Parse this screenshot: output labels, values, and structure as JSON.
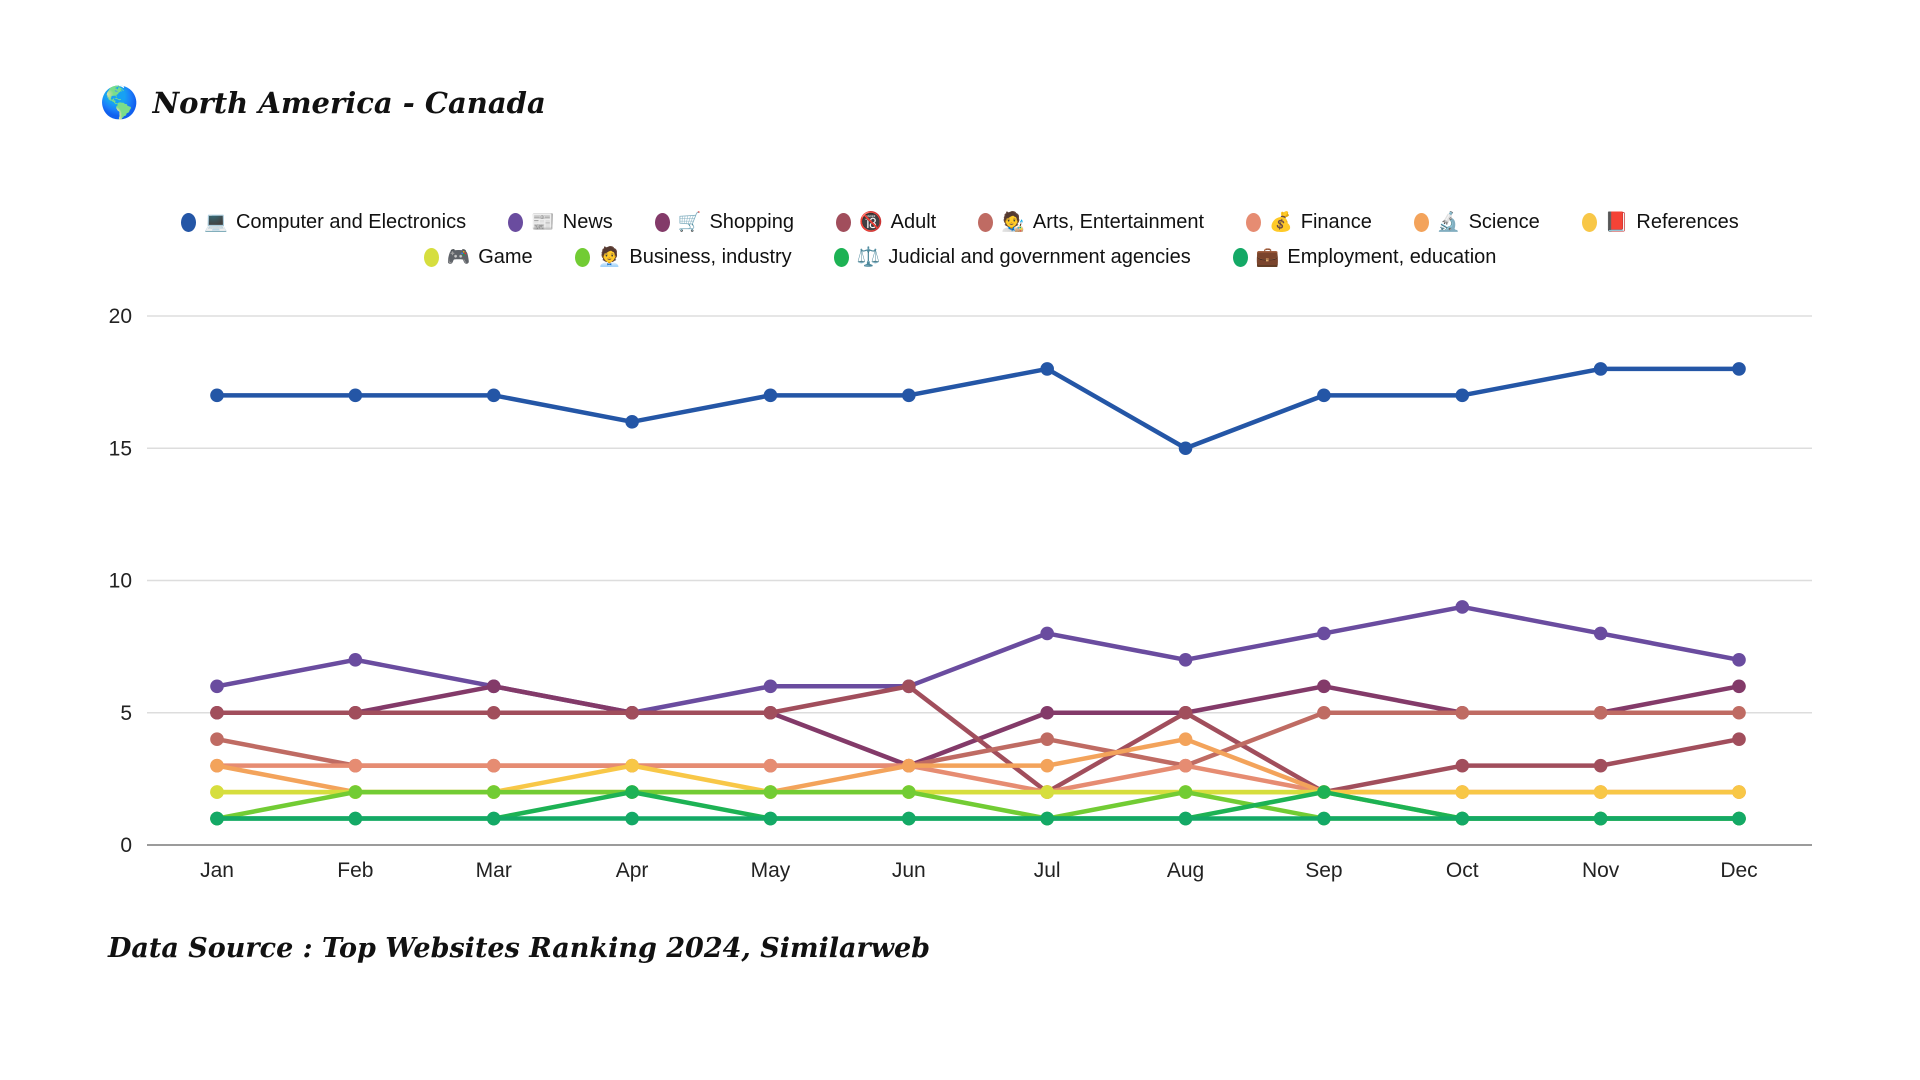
{
  "title": {
    "icon": "🌎",
    "text": "North America - Canada"
  },
  "source_note": "Data Source : Top Websites Ranking 2024, Similarweb",
  "chart_data": {
    "type": "line",
    "title": "North America - Canada",
    "xlabel": "",
    "ylabel": "",
    "ylim": [
      0,
      20
    ],
    "yticks": [
      0,
      5,
      10,
      15,
      20
    ],
    "grid": true,
    "legend_position": "top",
    "legend_rows": [
      [
        0,
        1,
        2,
        3,
        4,
        5,
        6,
        7
      ],
      [
        8,
        9,
        10,
        11
      ]
    ],
    "categories": [
      "Jan",
      "Feb",
      "Mar",
      "Apr",
      "May",
      "Jun",
      "Jul",
      "Aug",
      "Sep",
      "Oct",
      "Nov",
      "Dec"
    ],
    "series": [
      {
        "name": "Computer and Electronics",
        "icon": "💻",
        "color": "#2456A6",
        "values": [
          17,
          17,
          17,
          16,
          17,
          17,
          18,
          15,
          17,
          17,
          18,
          18
        ]
      },
      {
        "name": "News",
        "icon": "📰",
        "color": "#6A4C9F",
        "values": [
          6,
          7,
          6,
          5,
          6,
          6,
          8,
          7,
          8,
          9,
          8,
          7
        ]
      },
      {
        "name": "Shopping",
        "icon": "🛒",
        "color": "#833A69",
        "values": [
          5,
          5,
          6,
          5,
          5,
          3,
          5,
          5,
          6,
          5,
          5,
          6
        ]
      },
      {
        "name": "Adult",
        "icon": "🔞",
        "color": "#A14E5C",
        "values": [
          5,
          5,
          5,
          5,
          5,
          6,
          2,
          5,
          2,
          3,
          3,
          4
        ]
      },
      {
        "name": "Arts, Entertainment",
        "icon": "🧑‍🎨",
        "color": "#BF6B63",
        "values": [
          4,
          3,
          3,
          3,
          3,
          3,
          4,
          3,
          5,
          5,
          5,
          5
        ]
      },
      {
        "name": "Finance",
        "icon": "💰",
        "color": "#E68C72",
        "values": [
          3,
          3,
          3,
          3,
          3,
          3,
          2,
          3,
          2,
          2,
          2,
          2
        ]
      },
      {
        "name": "Science",
        "icon": "🔬",
        "color": "#F3A35B",
        "values": [
          3,
          2,
          2,
          2,
          2,
          3,
          3,
          4,
          2,
          2,
          2,
          2
        ]
      },
      {
        "name": "References",
        "icon": "📕",
        "color": "#F8C747",
        "values": [
          2,
          2,
          2,
          3,
          2,
          2,
          2,
          2,
          2,
          2,
          2,
          2
        ]
      },
      {
        "name": "Game",
        "icon": "🎮",
        "color": "#D6DE3E",
        "values": [
          2,
          2,
          2,
          2,
          2,
          2,
          2,
          2,
          2,
          1,
          1,
          1
        ]
      },
      {
        "name": "Business, industry",
        "icon": "🧑‍💼",
        "color": "#72CC34",
        "values": [
          1,
          2,
          2,
          2,
          2,
          2,
          1,
          2,
          1,
          1,
          1,
          1
        ]
      },
      {
        "name": "Judicial and government agencies",
        "icon": "⚖️",
        "color": "#1DB254",
        "values": [
          1,
          1,
          1,
          2,
          1,
          1,
          1,
          1,
          2,
          1,
          1,
          1
        ]
      },
      {
        "name": "Employment, education",
        "icon": "💼",
        "color": "#14A966",
        "values": [
          1,
          1,
          1,
          1,
          1,
          1,
          1,
          1,
          1,
          1,
          1,
          1
        ]
      }
    ]
  },
  "style": {
    "grid_color": "#DDDDDD",
    "axis_color": "#9B9B9B",
    "tick_label_color": "#222222"
  }
}
